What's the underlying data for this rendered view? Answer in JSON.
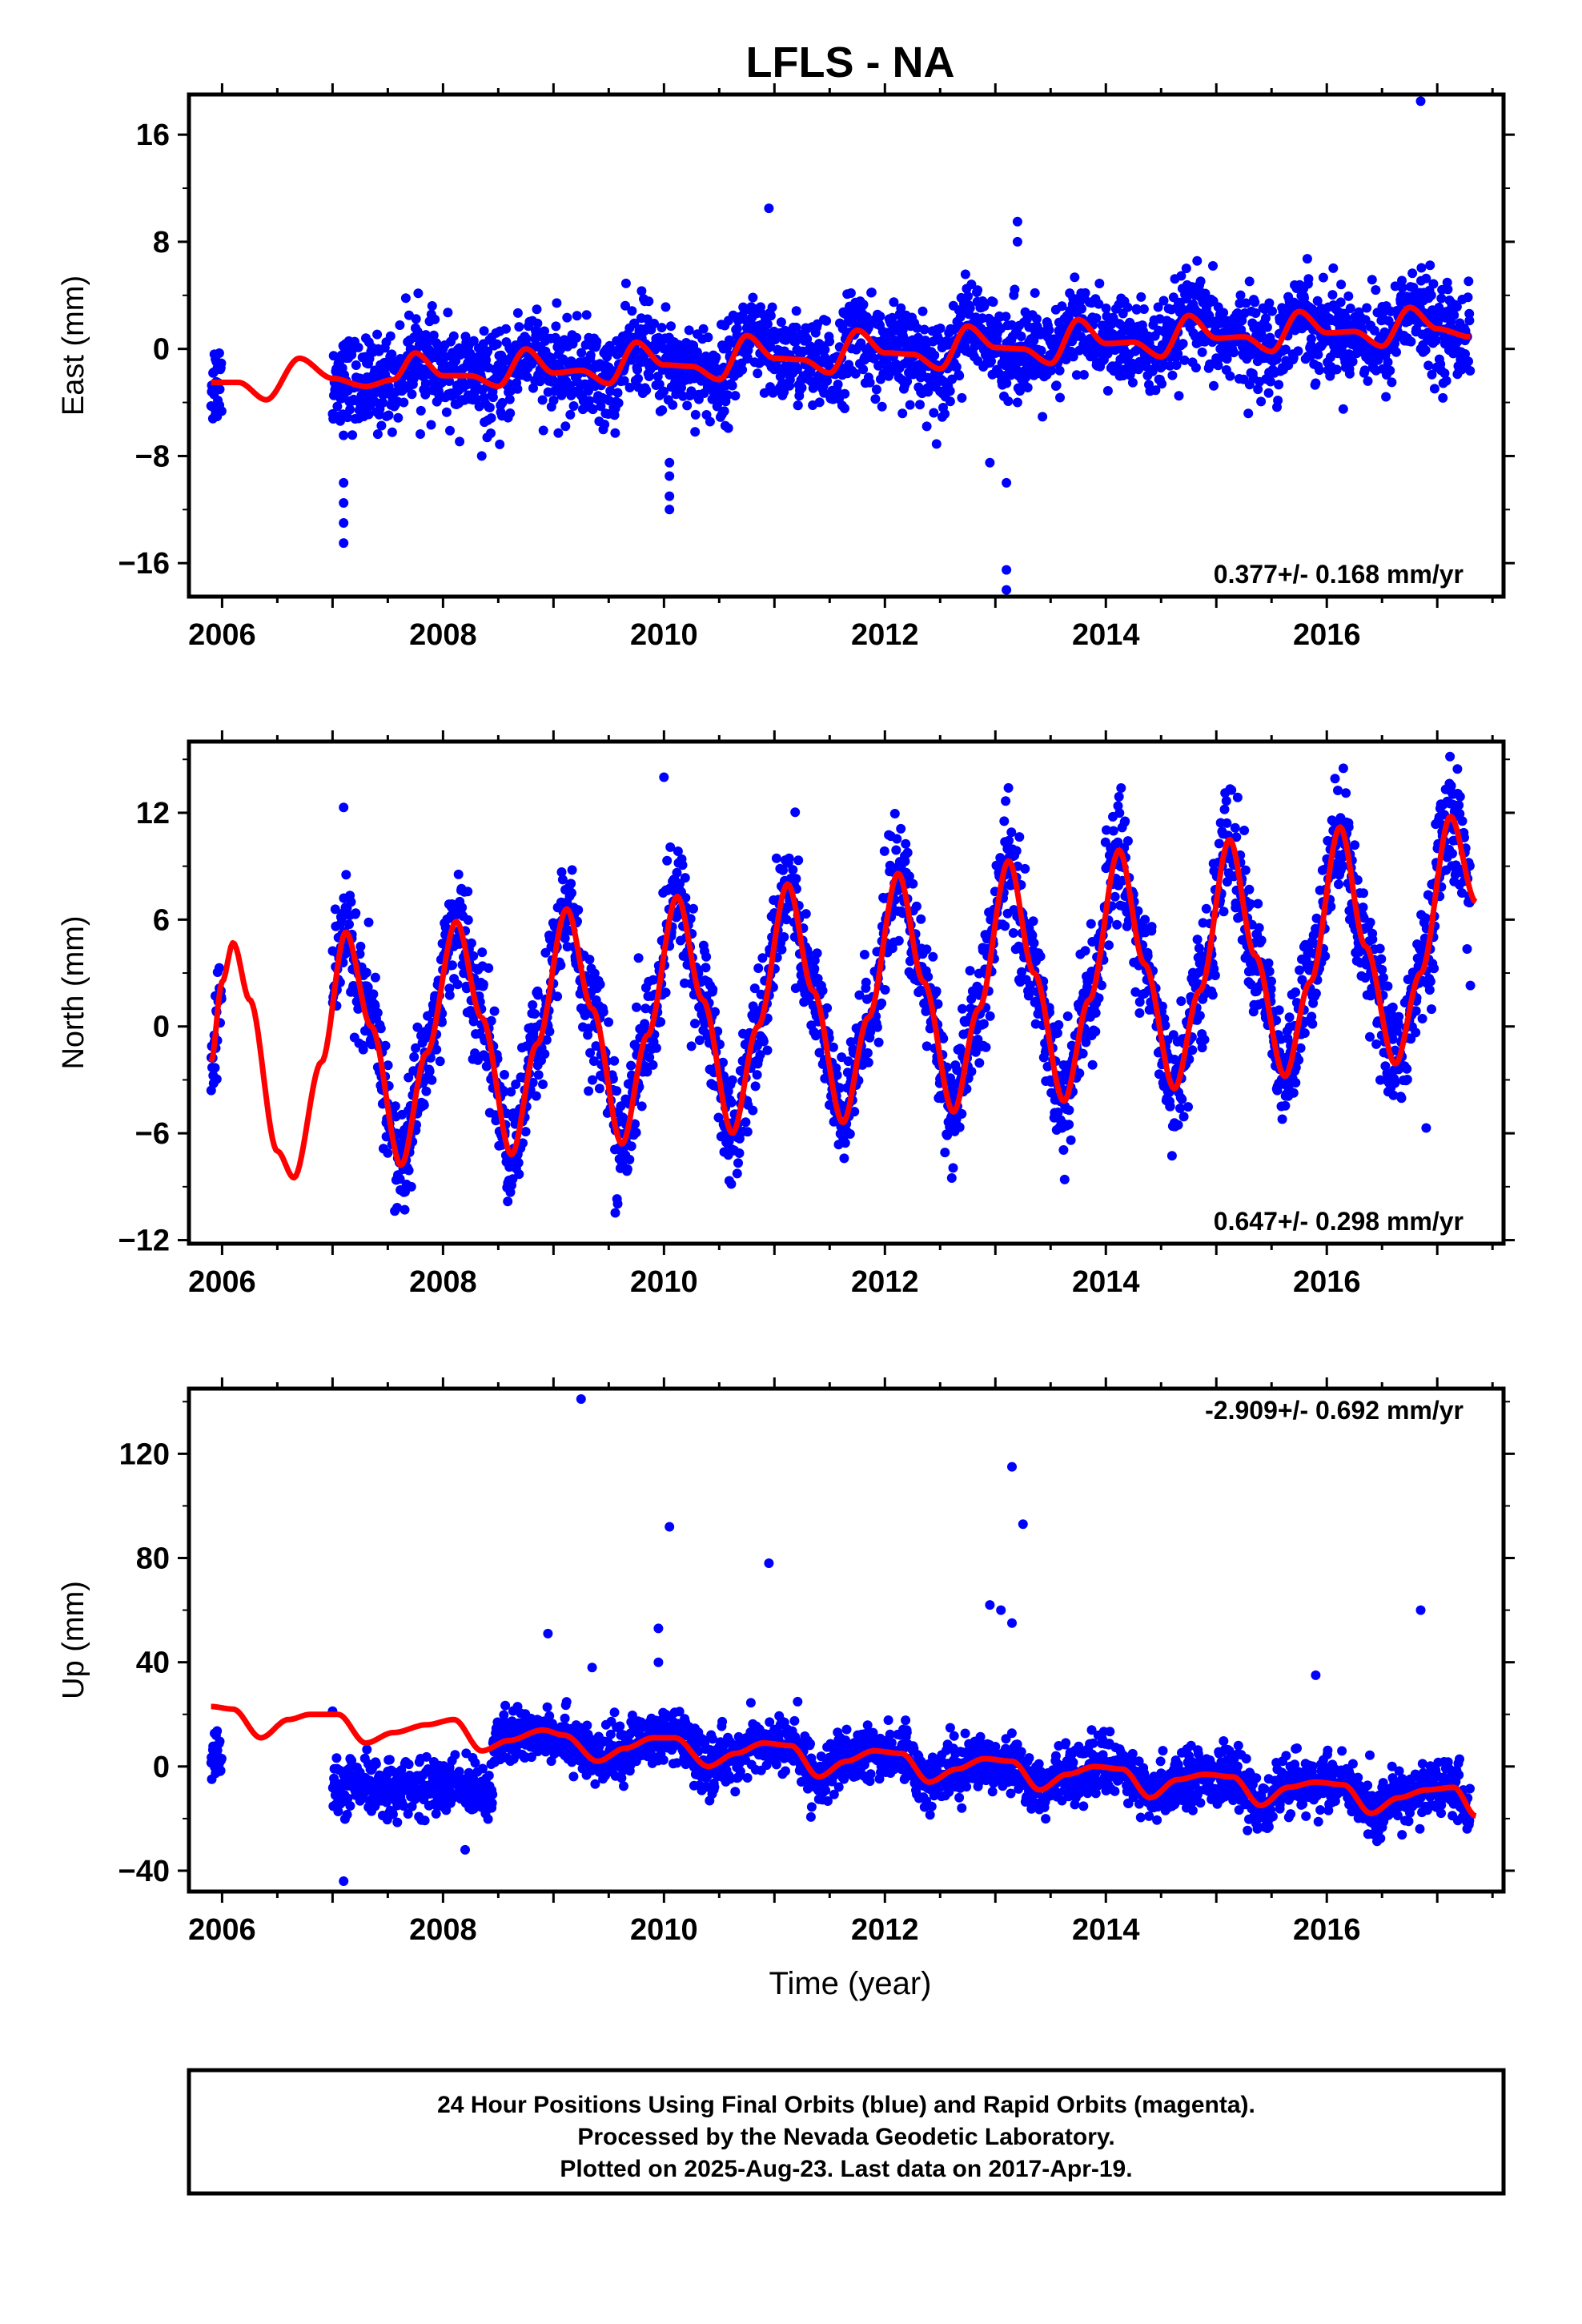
{
  "chart_data": {
    "type": "scatter",
    "title": "LFLS - NA",
    "xlabel": "Time (year)",
    "xlim": [
      2005.7,
      2017.6
    ],
    "xticks": [
      2006,
      2008,
      2010,
      2012,
      2014,
      2016
    ],
    "colors": {
      "points": "#0000ff",
      "fit": "#ff0000"
    },
    "panels": [
      {
        "name": "East",
        "ylabel": "East (mm)",
        "ylim": [
          -18.5,
          19
        ],
        "yticks": [
          16,
          8,
          0,
          -8,
          -16
        ],
        "yticks_text": [
          "16",
          "8",
          "0",
          "−8",
          "−16"
        ],
        "rate_text": "0.377+/- 0.168 mm/yr",
        "fit": {
          "x": [
            2005.9,
            2006.15,
            2006.4,
            2006.7,
            2007.0,
            2007.3,
            2007.55,
            2007.75,
            2008.0,
            2008.25,
            2008.5,
            2008.75,
            2009.0,
            2009.25,
            2009.5,
            2009.75,
            2010.0,
            2010.25,
            2010.5,
            2010.75,
            2011.0,
            2011.25,
            2011.5,
            2011.75,
            2012.0,
            2012.25,
            2012.5,
            2012.75,
            2013.0,
            2013.25,
            2013.5,
            2013.75,
            2014.0,
            2014.25,
            2014.5,
            2014.75,
            2015.0,
            2015.25,
            2015.5,
            2015.75,
            2016.0,
            2016.25,
            2016.5,
            2016.75,
            2017.0,
            2017.3
          ],
          "y": [
            -2.5,
            -2.5,
            -3.8,
            -0.7,
            -2.2,
            -2.8,
            -2.3,
            -0.3,
            -2.0,
            -2.0,
            -2.8,
            0.0,
            -1.8,
            -1.6,
            -2.6,
            0.5,
            -1.2,
            -1.3,
            -2.3,
            1.0,
            -0.7,
            -0.8,
            -1.8,
            1.4,
            -0.3,
            -0.4,
            -1.5,
            1.7,
            0.1,
            0.0,
            -1.1,
            2.2,
            0.4,
            0.5,
            -0.6,
            2.5,
            0.8,
            0.9,
            -0.2,
            2.8,
            1.2,
            1.3,
            0.2,
            3.1,
            1.5,
            0.9
          ],
          "color": "#ff0000"
        },
        "outliers": [
          {
            "x": 2007.1,
            "y": -10
          },
          {
            "x": 2007.1,
            "y": -11.5
          },
          {
            "x": 2007.1,
            "y": -13
          },
          {
            "x": 2007.1,
            "y": -14.5
          },
          {
            "x": 2010.05,
            "y": -8.5
          },
          {
            "x": 2010.05,
            "y": -9.5
          },
          {
            "x": 2010.05,
            "y": -11
          },
          {
            "x": 2010.05,
            "y": -12
          },
          {
            "x": 2010.95,
            "y": 10.5
          },
          {
            "x": 2013.2,
            "y": 9.5
          },
          {
            "x": 2013.2,
            "y": 8
          },
          {
            "x": 2013.1,
            "y": -16.5
          },
          {
            "x": 2013.1,
            "y": -18
          },
          {
            "x": 2013.1,
            "y": -10
          },
          {
            "x": 2012.95,
            "y": -8.5
          },
          {
            "x": 2016.85,
            "y": 18.5
          },
          {
            "x": 2008.35,
            "y": -8
          }
        ]
      },
      {
        "name": "North",
        "ylabel": "North (mm)",
        "ylim": [
          -12.2,
          16
        ],
        "yticks": [
          12,
          6,
          0,
          -6,
          -12
        ],
        "yticks_text": [
          "12",
          "6",
          "0",
          "−6",
          "−12"
        ],
        "rate_text": "0.647+/- 0.298 mm/yr",
        "fit": {
          "x": [
            2005.9,
            2006.0,
            2006.1,
            2006.25,
            2006.5,
            2006.65,
            2006.9,
            2007.12,
            2007.35,
            2007.62,
            2007.85,
            2008.12,
            2008.35,
            2008.62,
            2008.85,
            2009.12,
            2009.35,
            2009.62,
            2009.85,
            2010.12,
            2010.35,
            2010.62,
            2010.85,
            2011.12,
            2011.35,
            2011.62,
            2011.85,
            2012.12,
            2012.35,
            2012.62,
            2012.85,
            2013.12,
            2013.35,
            2013.62,
            2013.85,
            2014.12,
            2014.35,
            2014.62,
            2014.85,
            2015.12,
            2015.35,
            2015.62,
            2015.85,
            2016.12,
            2016.35,
            2016.62,
            2016.85,
            2017.12,
            2017.35
          ],
          "y": [
            -2,
            2.5,
            4.7,
            1.5,
            -7,
            -8.5,
            -2,
            5.3,
            0,
            -7.8,
            -1.5,
            5.9,
            0.5,
            -7.2,
            -1,
            6.6,
            1,
            -6.6,
            -0.5,
            7.3,
            1.5,
            -6.0,
            0,
            8,
            2,
            -5.4,
            0.5,
            8.6,
            2.5,
            -4.8,
            1,
            9.3,
            3,
            -4.2,
            1.5,
            9.9,
            3.5,
            -3.5,
            2,
            10.5,
            4,
            -2.8,
            2.5,
            11.2,
            4.5,
            -2.1,
            3,
            11.8,
            7
          ]
        },
        "outliers": [
          {
            "x": 2007.1,
            "y": 12.3
          },
          {
            "x": 2010.0,
            "y": 14
          },
          {
            "x": 2016.9,
            "y": -5.7
          },
          {
            "x": 2017.3,
            "y": 2.3
          }
        ]
      },
      {
        "name": "Up",
        "ylabel": "Up (mm)",
        "ylim": [
          -48,
          145
        ],
        "yticks": [
          120,
          80,
          40,
          0,
          -40
        ],
        "yticks_text": [
          "120",
          "80",
          "40",
          "0",
          "−40"
        ],
        "rate_text": "-2.909+/- 0.692 mm/yr",
        "fit": {
          "x": [
            2005.9,
            2006.1,
            2006.35,
            2006.6,
            2006.8,
            2007.05,
            2007.3,
            2007.55,
            2007.85,
            2008.1,
            2008.35,
            2008.6,
            2008.9,
            2009.1,
            2009.4,
            2009.65,
            2009.9,
            2010.1,
            2010.4,
            2010.65,
            2010.9,
            2011.15,
            2011.4,
            2011.65,
            2011.9,
            2012.15,
            2012.4,
            2012.65,
            2012.9,
            2013.15,
            2013.4,
            2013.65,
            2013.9,
            2014.15,
            2014.4,
            2014.65,
            2014.9,
            2015.15,
            2015.4,
            2015.65,
            2015.9,
            2016.15,
            2016.4,
            2016.65,
            2016.9,
            2017.15,
            2017.35
          ],
          "y": [
            23,
            22,
            11,
            18,
            20,
            20,
            9,
            13,
            16,
            18,
            6,
            10,
            14,
            12,
            2,
            7,
            11,
            11,
            0,
            5,
            9,
            8,
            -4,
            2,
            6,
            5,
            -6,
            -1,
            3,
            2,
            -9,
            -3,
            0,
            -1,
            -12,
            -5,
            -3,
            -4,
            -15,
            -8,
            -6,
            -7,
            -18,
            -12,
            -9,
            -8,
            -19
          ]
        },
        "outliers": [
          {
            "x": 2009.25,
            "y": 141
          },
          {
            "x": 2010.05,
            "y": 92
          },
          {
            "x": 2010.95,
            "y": 78
          },
          {
            "x": 2013.15,
            "y": 115
          },
          {
            "x": 2013.25,
            "y": 93
          },
          {
            "x": 2012.95,
            "y": 62
          },
          {
            "x": 2013.05,
            "y": 60
          },
          {
            "x": 2013.15,
            "y": 55
          },
          {
            "x": 2016.85,
            "y": 60
          },
          {
            "x": 2008.95,
            "y": 51
          },
          {
            "x": 2009.95,
            "y": 53
          },
          {
            "x": 2009.95,
            "y": 40
          },
          {
            "x": 2015.9,
            "y": 35
          },
          {
            "x": 2007.1,
            "y": -44
          },
          {
            "x": 2008.2,
            "y": -32
          },
          {
            "x": 2009.35,
            "y": 38
          }
        ]
      }
    ]
  },
  "footer": {
    "line1": "24 Hour Positions Using Final Orbits (blue) and Rapid Orbits (magenta).",
    "line2": "Processed by the Nevada Geodetic Laboratory.",
    "line3": "Plotted on 2025-Aug-23. Last data on 2017-Apr-19."
  }
}
